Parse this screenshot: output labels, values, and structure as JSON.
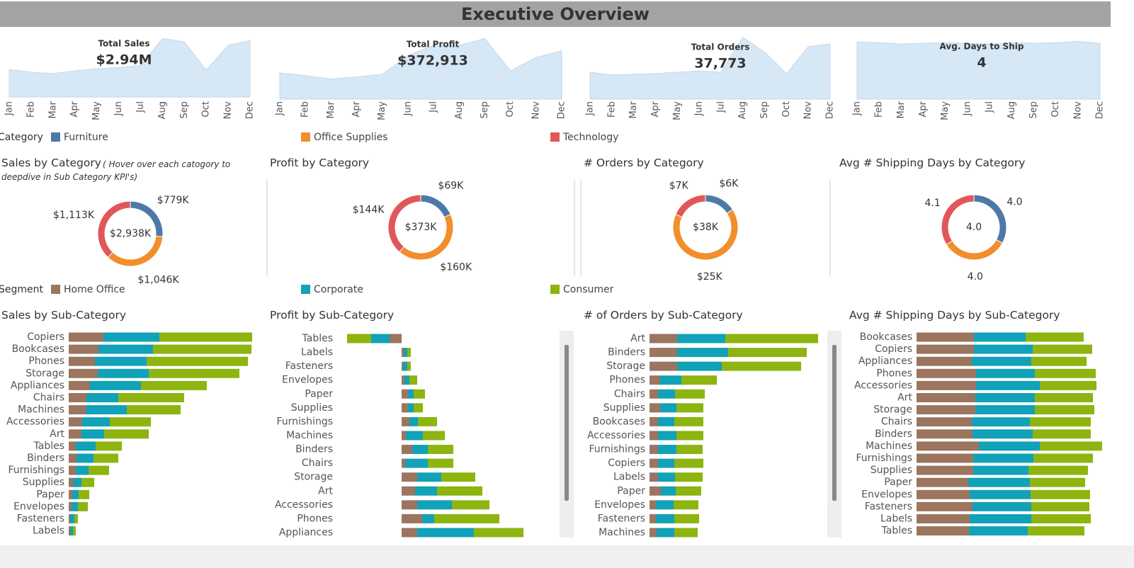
{
  "title": "Executive Overview",
  "chart_data": [
    {
      "type": "area",
      "kpi_title": "Total Sales",
      "kpi_value": "$2.94M",
      "color": "#d6e7f5",
      "categories": [
        "Jan",
        "Feb",
        "Mar",
        "Apr",
        "May",
        "Jun",
        "Jul",
        "Aug",
        "Sep",
        "Oct",
        "Nov",
        "Dec"
      ],
      "values": [
        41,
        37,
        35,
        39,
        42,
        44,
        47,
        87,
        82,
        40,
        77,
        84
      ],
      "ylim": [
        0,
        100
      ]
    },
    {
      "type": "area",
      "kpi_title": "Total Profit",
      "kpi_value": "$372,913",
      "color": "#d6e7f5",
      "categories": [
        "Jan",
        "Feb",
        "Mar",
        "Apr",
        "May",
        "Jun",
        "Jul",
        "Aug",
        "Sep",
        "Oct",
        "Nov",
        "Dec"
      ],
      "values": [
        39,
        35,
        30,
        33,
        37,
        65,
        80,
        80,
        90,
        42,
        62,
        72
      ],
      "ylim": [
        0,
        100
      ]
    },
    {
      "type": "area",
      "kpi_title": "Total Orders",
      "kpi_value": "37,773",
      "color": "#d6e7f5",
      "categories": [
        "Jan",
        "Feb",
        "Mar",
        "Apr",
        "May",
        "Jun",
        "Jul",
        "Aug",
        "Sep",
        "Oct",
        "Nov",
        "Dec"
      ],
      "values": [
        40,
        36,
        37,
        38,
        40,
        42,
        40,
        92,
        70,
        38,
        78,
        82
      ],
      "ylim": [
        0,
        100
      ]
    },
    {
      "type": "area",
      "kpi_title": "Avg. Days to Ship",
      "kpi_value": "4",
      "color": "#d6e7f5",
      "categories": [
        "Jan",
        "Feb",
        "Mar",
        "Apr",
        "May",
        "Jun",
        "Jul",
        "Aug",
        "Sep",
        "Oct",
        "Nov",
        "Dec"
      ],
      "values": [
        85,
        84,
        82,
        83,
        84,
        83,
        82,
        84,
        83,
        84,
        86,
        83
      ],
      "ylim": [
        0,
        100
      ]
    },
    {
      "type": "pie",
      "title": "Sales by Category",
      "note": "( Hover over each catogory to deepdive in Sub Category KPI's)",
      "legend_title": "Category",
      "categories": [
        "Furniture",
        "Office Supplies",
        "Technology"
      ],
      "colors": [
        "#4e79a7",
        "#f28e2b",
        "#e15759"
      ],
      "values": [
        779,
        1046,
        1113
      ],
      "value_labels": [
        "$779K",
        "$1,046K",
        "$1,113K"
      ],
      "center_label": "$2,938K"
    },
    {
      "type": "pie",
      "title": "Profit by Category",
      "categories": [
        "Furniture",
        "Office Supplies",
        "Technology"
      ],
      "colors": [
        "#4e79a7",
        "#f28e2b",
        "#e15759"
      ],
      "values": [
        69,
        160,
        144
      ],
      "value_labels": [
        "$69K",
        "$160K",
        "$144K"
      ],
      "center_label": "$373K"
    },
    {
      "type": "pie",
      "title": "# Orders by Category",
      "categories": [
        "Furniture",
        "Office Supplies",
        "Technology"
      ],
      "colors": [
        "#4e79a7",
        "#f28e2b",
        "#e15759"
      ],
      "values": [
        6,
        25,
        7
      ],
      "value_labels": [
        "$6K",
        "$25K",
        "$7K"
      ],
      "center_label": "$38K"
    },
    {
      "type": "pie",
      "title": "Avg # Shipping Days by Category",
      "categories": [
        "Furniture",
        "Office Supplies",
        "Technology"
      ],
      "colors": [
        "#4e79a7",
        "#f28e2b",
        "#e15759"
      ],
      "values": [
        4.0,
        4.0,
        4.1
      ],
      "value_labels": [
        "4.0",
        "4.0",
        "4.1"
      ],
      "center_label": "4.0"
    },
    {
      "type": "bar",
      "title": "Sales by Sub-Category",
      "legend_title": "Segment",
      "xlim": [
        0,
        270
      ],
      "categories": [
        "Copiers",
        "Bookcases",
        "Phones",
        "Storage",
        "Appliances",
        "Chairs",
        "Machines",
        "Accessories",
        "Art",
        "Tables",
        "Binders",
        "Furnishings",
        "Supplies",
        "Paper",
        "Envelopes",
        "Fasteners",
        "Labels"
      ],
      "series": [
        {
          "name": "Home Office",
          "color": "#9c755f",
          "values": [
            49,
            42,
            37,
            41,
            30,
            25,
            24,
            19,
            18,
            10,
            11,
            10,
            6,
            5,
            4,
            2,
            2
          ]
        },
        {
          "name": "Corporate",
          "color": "#11a1b8",
          "values": [
            79,
            77,
            73,
            72,
            72,
            45,
            58,
            39,
            32,
            28,
            24,
            18,
            12,
            9,
            9,
            6,
            4
          ]
        },
        {
          "name": "Consumer",
          "color": "#8db40f",
          "values": [
            131,
            139,
            143,
            128,
            93,
            93,
            76,
            58,
            63,
            37,
            35,
            29,
            18,
            15,
            14,
            5,
            4
          ]
        }
      ]
    },
    {
      "type": "bar",
      "title": "Profit by Sub-Category",
      "xlim": [
        -90,
        200
      ],
      "categories": [
        "Tables",
        "Labels",
        "Fasteners",
        "Envelopes",
        "Paper",
        "Supplies",
        "Furnishings",
        "Machines",
        "Binders",
        "Chairs",
        "Storage",
        "Art",
        "Accessories",
        "Phones",
        "Appliances"
      ],
      "series": [
        {
          "name": "Home Office",
          "color": "#9c755f",
          "values": [
            -17,
            3,
            2,
            4,
            9,
            9,
            11,
            6,
            15,
            5,
            22,
            19,
            22,
            29,
            22
          ]
        },
        {
          "name": "Corporate",
          "color": "#11a1b8",
          "values": [
            -26,
            5,
            6,
            7,
            8,
            8,
            12,
            24,
            22,
            32,
            34,
            31,
            49,
            17,
            80
          ]
        },
        {
          "name": "Consumer",
          "color": "#8db40f",
          "values": [
            -34,
            5,
            5,
            11,
            16,
            13,
            27,
            31,
            36,
            36,
            48,
            64,
            53,
            92,
            70
          ]
        }
      ]
    },
    {
      "type": "bar",
      "title": "# of Orders by Sub-Category",
      "xlim": [
        0,
        260
      ],
      "categories": [
        "Art",
        "Binders",
        "Storage",
        "Phones",
        "Chairs",
        "Supplies",
        "Bookcases",
        "Accessories",
        "Furnishings",
        "Copiers",
        "Labels",
        "Paper",
        "Envelopes",
        "Fasteners",
        "Machines"
      ],
      "series": [
        {
          "name": "Home Office",
          "color": "#9c755f",
          "values": [
            39,
            39,
            39,
            15,
            12,
            15,
            12,
            12,
            12,
            12,
            12,
            16,
            9,
            9,
            10
          ]
        },
        {
          "name": "Corporate",
          "color": "#11a1b8",
          "values": [
            68,
            72,
            63,
            30,
            24,
            23,
            23,
            26,
            26,
            23,
            24,
            21,
            25,
            26,
            25
          ]
        },
        {
          "name": "Consumer",
          "color": "#8db40f",
          "values": [
            131,
            111,
            112,
            50,
            42,
            38,
            41,
            38,
            37,
            41,
            39,
            36,
            35,
            35,
            33
          ]
        }
      ]
    },
    {
      "type": "bar",
      "title": "Avg # Shipping Days by Sub-Category",
      "xlim": [
        0,
        270
      ],
      "categories": [
        "Bookcases",
        "Copiers",
        "Appliances",
        "Phones",
        "Accessories",
        "Art",
        "Storage",
        "Chairs",
        "Binders",
        "Machines",
        "Furnishings",
        "Supplies",
        "Paper",
        "Envelopes",
        "Fasteners",
        "Labels",
        "Tables"
      ],
      "series": [
        {
          "name": "Home Office",
          "color": "#9c755f",
          "values": [
            81,
            81,
            78,
            84,
            84,
            83,
            83,
            78,
            79,
            88,
            80,
            80,
            73,
            75,
            79,
            75,
            74
          ]
        },
        {
          "name": "Corporate",
          "color": "#11a1b8",
          "values": [
            73,
            83,
            84,
            83,
            90,
            84,
            84,
            82,
            85,
            86,
            85,
            78,
            87,
            86,
            83,
            87,
            83
          ]
        },
        {
          "name": "Consumer",
          "color": "#8db40f",
          "values": [
            82,
            84,
            78,
            86,
            80,
            82,
            84,
            86,
            82,
            88,
            84,
            84,
            78,
            84,
            82,
            84,
            80
          ]
        }
      ]
    }
  ]
}
